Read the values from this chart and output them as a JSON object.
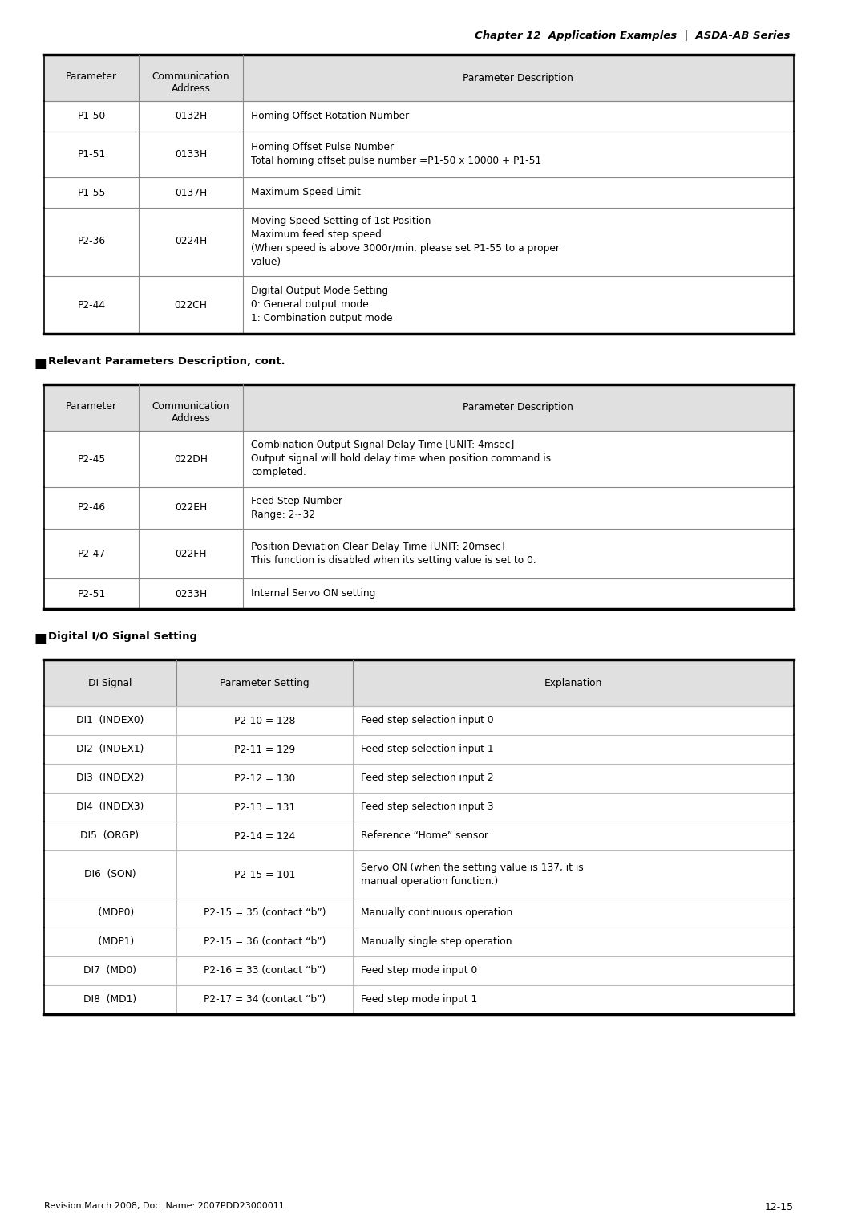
{
  "page_title": "Chapter 12  Application Examples  |  ASDA-AB Series",
  "header_bg": "#d9d9d9",
  "white_bg": "#ffffff",
  "border_color": "#000000",
  "light_line_color": "#aaaaaa",
  "text_color": "#000000",
  "section1_rows": [
    {
      "param": "P1-50",
      "addr": "0132H",
      "desc": [
        "Homing Offset Rotation Number"
      ]
    },
    {
      "param": "P1-51",
      "addr": "0133H",
      "desc": [
        "Homing Offset Pulse Number",
        "Total homing offset pulse number =P1-50 x 10000 + P1-51"
      ]
    },
    {
      "param": "P1-55",
      "addr": "0137H",
      "desc": [
        "Maximum Speed Limit"
      ]
    },
    {
      "param": "P2-36",
      "addr": "0224H",
      "desc": [
        "Moving Speed Setting of 1st Position",
        "Maximum feed step speed",
        "(When speed is above 3000r/min, please set P1-55 to a proper",
        "value)"
      ]
    },
    {
      "param": "P2-44",
      "addr": "022CH",
      "desc": [
        "Digital Output Mode Setting",
        "0: General output mode",
        "1: Combination output mode"
      ]
    }
  ],
  "section2_rows": [
    {
      "param": "P2-45",
      "addr": "022DH",
      "desc": [
        "Combination Output Signal Delay Time [UNIT: 4msec]",
        "Output signal will hold delay time when position command is",
        "completed."
      ]
    },
    {
      "param": "P2-46",
      "addr": "022EH",
      "desc": [
        "Feed Step Number",
        "Range: 2~32"
      ]
    },
    {
      "param": "P2-47",
      "addr": "022FH",
      "desc": [
        "Position Deviation Clear Delay Time [UNIT: 20msec]",
        "This function is disabled when its setting value is set to 0."
      ]
    },
    {
      "param": "P2-51",
      "addr": "0233H",
      "desc": [
        "Internal Servo ON setting"
      ]
    }
  ],
  "section3_rows": [
    {
      "signal": "DI1  (INDEX0)",
      "setting": "P2-10 = 128",
      "explanation": [
        "Feed step selection input 0"
      ]
    },
    {
      "signal": "DI2  (INDEX1)",
      "setting": "P2-11 = 129",
      "explanation": [
        "Feed step selection input 1"
      ]
    },
    {
      "signal": "DI3  (INDEX2)",
      "setting": "P2-12 = 130",
      "explanation": [
        "Feed step selection input 2"
      ]
    },
    {
      "signal": "DI4  (INDEX3)",
      "setting": "P2-13 = 131",
      "explanation": [
        "Feed step selection input 3"
      ]
    },
    {
      "signal": "DI5  (ORGP)",
      "setting": "P2-14 = 124",
      "explanation": [
        "Reference “Home” sensor"
      ]
    },
    {
      "signal": "DI6  (SON)",
      "setting": "P2-15 = 101",
      "explanation": [
        "Servo ON (when the setting value is 137, it is",
        "manual operation function.)"
      ]
    },
    {
      "signal": "    (MDP0)",
      "setting": "P2-15 = 35 (contact “b”)",
      "explanation": [
        "Manually continuous operation"
      ]
    },
    {
      "signal": "    (MDP1)",
      "setting": "P2-15 = 36 (contact “b”)",
      "explanation": [
        "Manually single step operation"
      ]
    },
    {
      "signal": "DI7  (MD0)",
      "setting": "P2-16 = 33 (contact “b”)",
      "explanation": [
        "Feed step mode input 0"
      ]
    },
    {
      "signal": "DI8  (MD1)",
      "setting": "P2-17 = 34 (contact “b”)",
      "explanation": [
        "Feed step mode input 1"
      ]
    }
  ],
  "footer_left": "Revision March 2008, Doc. Name: 2007PDD23000011",
  "footer_right": "12-15"
}
